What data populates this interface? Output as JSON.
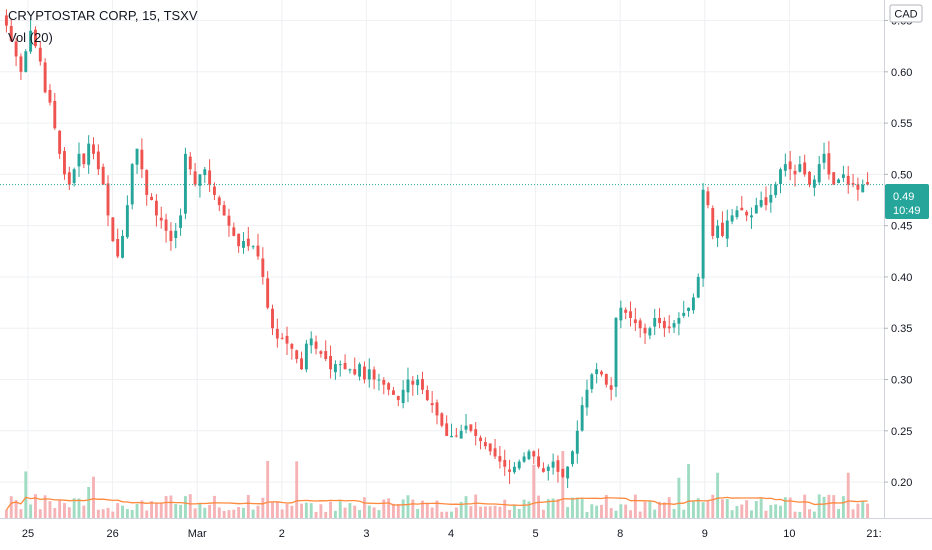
{
  "header": {
    "symbol_title": "CRYPTOSTAR CORP, 15, TSXV",
    "volume_label": "Vol (20)"
  },
  "currency_badge": "CAD",
  "last_price": {
    "price": "0.49",
    "countdown": "10:49",
    "color": "#26a69a"
  },
  "colors": {
    "up": "#26a69a",
    "down": "#ef5350",
    "vol_up": "#9fdcc2",
    "vol_down": "#f6b3b6",
    "vol_ma": "#ff8a3d",
    "grid": "#eef0f3",
    "price_line": "#26a69a"
  },
  "chart_data": {
    "type": "candlestick",
    "title": "CRYPTOSTAR CORP, 15, TSXV",
    "currency": "CAD",
    "y_ticks": [
      "0.20",
      "0.25",
      "0.30",
      "0.35",
      "0.40",
      "0.45",
      "0.50",
      "0.55",
      "0.60",
      "0.65"
    ],
    "x_ticks": [
      "25",
      "26",
      "Mar",
      "2",
      "3",
      "4",
      "5",
      "8",
      "9",
      "10",
      "21:"
    ],
    "ylim": [
      0.165,
      0.67
    ],
    "volume_indicator": "Vol (20)",
    "last_price": 0.49,
    "session_closes": [
      {
        "session": "25",
        "close": 0.5
      },
      {
        "session": "26",
        "close": 0.47
      },
      {
        "session": "Mar",
        "close": 0.43
      },
      {
        "session": "2",
        "close": 0.31
      },
      {
        "session": "3",
        "close": 0.28
      },
      {
        "session": "4",
        "close": 0.25
      },
      {
        "session": "5",
        "close": 0.21
      },
      {
        "session": "8",
        "close": 0.36
      },
      {
        "session": "9",
        "close": 0.48
      },
      {
        "session": "10",
        "close": 0.49
      }
    ],
    "close_path": [
      0.645,
      0.63,
      0.615,
      0.6,
      0.62,
      0.64,
      0.625,
      0.61,
      0.58,
      0.57,
      0.545,
      0.52,
      0.5,
      0.49,
      0.505,
      0.52,
      0.51,
      0.53,
      0.52,
      0.505,
      0.49,
      0.46,
      0.435,
      0.42,
      0.44,
      0.47,
      0.51,
      0.525,
      0.505,
      0.48,
      0.475,
      0.46,
      0.455,
      0.445,
      0.435,
      0.445,
      0.46,
      0.52,
      0.505,
      0.49,
      0.5,
      0.505,
      0.49,
      0.48,
      0.47,
      0.46,
      0.45,
      0.44,
      0.43,
      0.435,
      0.43,
      0.43,
      0.42,
      0.4,
      0.37,
      0.35,
      0.34,
      0.34,
      0.335,
      0.33,
      0.32,
      0.31,
      0.335,
      0.34,
      0.33,
      0.325,
      0.32,
      0.31,
      0.315,
      0.315,
      0.31,
      0.31,
      0.305,
      0.315,
      0.3,
      0.31,
      0.3,
      0.3,
      0.295,
      0.29,
      0.285,
      0.28,
      0.29,
      0.3,
      0.295,
      0.3,
      0.29,
      0.28,
      0.275,
      0.265,
      0.255,
      0.245,
      0.245,
      0.245,
      0.25,
      0.255,
      0.25,
      0.245,
      0.24,
      0.235,
      0.23,
      0.225,
      0.22,
      0.215,
      0.21,
      0.215,
      0.22,
      0.225,
      0.23,
      0.225,
      0.215,
      0.21,
      0.215,
      0.22,
      0.21,
      0.205,
      0.215,
      0.23,
      0.25,
      0.275,
      0.29,
      0.305,
      0.31,
      0.305,
      0.295,
      0.29,
      0.36,
      0.37,
      0.365,
      0.36,
      0.355,
      0.35,
      0.345,
      0.35,
      0.36,
      0.355,
      0.35,
      0.35,
      0.355,
      0.36,
      0.365,
      0.37,
      0.38,
      0.4,
      0.485,
      0.47,
      0.44,
      0.45,
      0.44,
      0.455,
      0.46,
      0.465,
      0.465,
      0.46,
      0.46,
      0.47,
      0.475,
      0.47,
      0.48,
      0.49,
      0.505,
      0.51,
      0.505,
      0.5,
      0.51,
      0.5,
      0.49,
      0.495,
      0.51,
      0.52,
      0.5,
      0.49,
      0.495,
      0.5,
      0.49,
      0.49,
      0.485,
      0.49,
      0.49
    ]
  }
}
